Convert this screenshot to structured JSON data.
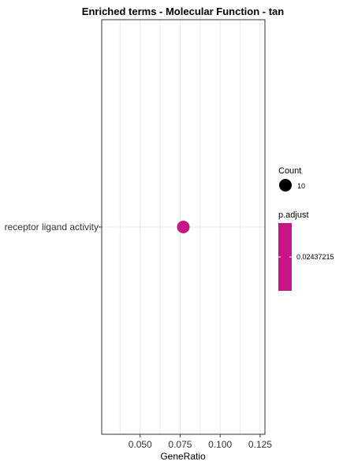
{
  "chart_data": {
    "type": "scatter",
    "title": "Enriched terms - Molecular Function - tan",
    "xlabel": "GeneRatio",
    "ylabel": "",
    "xlim": [
      0.026,
      0.128
    ],
    "x_ticks": [
      0.05,
      0.075,
      0.1,
      0.125
    ],
    "x_tick_labels": [
      "0.050",
      "0.075",
      "0.100",
      "0.125"
    ],
    "categories": [
      "receptor ligand activity"
    ],
    "points": [
      {
        "term": "receptor ligand activity",
        "x": 0.077,
        "count": 10,
        "p_adjust": 0.02437215,
        "color": "#C71585"
      }
    ],
    "grid": true,
    "legend_position": "right",
    "legend": {
      "size_title": "Count",
      "size_label": "10",
      "color_title": "p.adjust",
      "color_label": "0.02437215",
      "color": "#C71585"
    }
  }
}
